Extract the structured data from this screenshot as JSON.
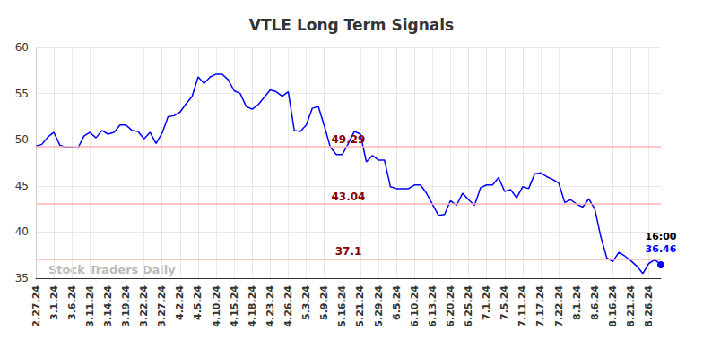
{
  "chart_data": {
    "type": "line",
    "title": "VTLE Long Term Signals",
    "categories": [
      "2.27.24",
      null,
      null,
      "3.1.24",
      null,
      null,
      "3.6.24",
      null,
      null,
      "3.11.24",
      null,
      null,
      "3.14.24",
      null,
      null,
      "3.19.24",
      null,
      null,
      "3.22.24",
      null,
      null,
      "3.27.24",
      null,
      null,
      "4.2.24",
      null,
      null,
      "4.5.24",
      null,
      null,
      "4.10.24",
      null,
      null,
      "4.15.24",
      null,
      null,
      "4.18.24",
      null,
      null,
      "4.23.24",
      null,
      null,
      "4.26.24",
      null,
      null,
      "5.3.24",
      null,
      null,
      "5.9.24",
      null,
      null,
      "5.16.24",
      null,
      null,
      "5.21.24",
      null,
      null,
      "5.29.24",
      null,
      null,
      "6.5.24",
      null,
      null,
      "6.10.24",
      null,
      null,
      "6.13.24",
      null,
      null,
      "6.20.24",
      null,
      null,
      "6.25.24",
      null,
      null,
      "7.1.24",
      null,
      null,
      "7.5.24",
      null,
      null,
      "7.11.24",
      null,
      null,
      "7.17.24",
      null,
      null,
      "7.22.24",
      null,
      null,
      "8.1.24",
      null,
      null,
      "8.6.24",
      null,
      null,
      "8.16.24",
      null,
      null,
      "8.21.24",
      null,
      null,
      "8.26.24",
      null,
      null
    ],
    "values": [
      49.3,
      49.5,
      50.3,
      50.8,
      49.4,
      49.2,
      49.2,
      49.1,
      50.4,
      50.8,
      50.2,
      51.0,
      50.6,
      50.8,
      51.6,
      51.6,
      51.0,
      50.9,
      50.1,
      50.8,
      49.6,
      50.7,
      52.5,
      52.6,
      53.0,
      53.9,
      54.7,
      56.8,
      56.1,
      56.8,
      57.1,
      57.1,
      56.5,
      55.3,
      55.0,
      53.6,
      53.3,
      53.8,
      54.6,
      55.4,
      55.2,
      54.7,
      55.2,
      51.0,
      50.9,
      51.6,
      53.4,
      53.6,
      51.5,
      49.2,
      48.4,
      48.4,
      49.6,
      50.9,
      50.6,
      47.6,
      48.3,
      47.8,
      47.8,
      44.9,
      44.7,
      44.7,
      44.7,
      45.1,
      45.1,
      44.2,
      43.0,
      41.8,
      41.9,
      43.4,
      42.9,
      44.2,
      43.5,
      42.9,
      44.8,
      45.1,
      45.1,
      45.9,
      44.4,
      44.6,
      43.7,
      44.9,
      44.7,
      46.3,
      46.4,
      46.0,
      45.7,
      45.3,
      43.2,
      43.5,
      43.0,
      42.7,
      43.6,
      42.5,
      39.5,
      37.2,
      36.8,
      37.8,
      37.4,
      36.9,
      36.3,
      35.5,
      36.6,
      37.0,
      36.46
    ],
    "color": "#0000ff",
    "levels": [
      49.29,
      43.04,
      37.1
    ],
    "last_label": "16:00",
    "watermark": "Stock Traders Daily",
    "ylim": [
      35,
      60
    ],
    "yticks": [
      35,
      40,
      45,
      50,
      55,
      60
    ],
    "grid": true
  }
}
